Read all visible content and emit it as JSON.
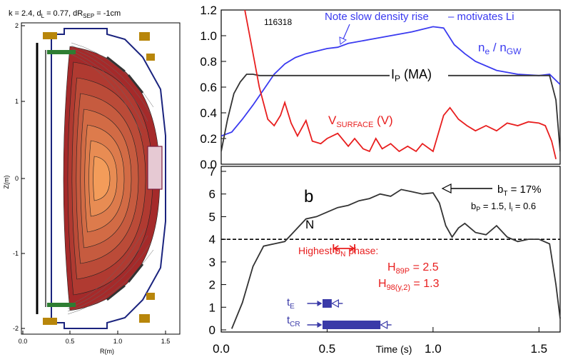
{
  "equilibrium": {
    "title_parts": {
      "k": "k = 2.4, d",
      "dL_sub": "L",
      "dL_val": " = 0.77, dR",
      "sep_sub": "SEP",
      "sep_val": " = -1cm"
    },
    "xlabel": "R(m)",
    "ylabel": "Z(m)",
    "xticks": [
      "0.0",
      "0.5",
      "1.0",
      "1.5"
    ],
    "yticks": [
      "2",
      "1",
      "0",
      "-1",
      "-2"
    ],
    "colors": {
      "vessel": "#1a237e",
      "tiles": "#2e7d32",
      "coils": "#b8860b",
      "plasma_edge": "#a52a2a",
      "plasma_core": "#f39c5a"
    }
  },
  "chart_data": [
    {
      "type": "line",
      "panel": "top",
      "shot_label": "116318",
      "xlim": [
        0.0,
        1.6
      ],
      "ylim": [
        0.0,
        1.2
      ],
      "yticks": [
        "0.0",
        "0.2",
        "0.4",
        "0.6",
        "0.8",
        "1.0",
        "1.2"
      ],
      "series": [
        {
          "name": "n_e / n_GW",
          "color": "#3a3af0",
          "x": [
            0.0,
            0.05,
            0.1,
            0.15,
            0.2,
            0.25,
            0.3,
            0.35,
            0.4,
            0.45,
            0.5,
            0.55,
            0.6,
            0.7,
            0.8,
            0.9,
            1.0,
            1.05,
            1.1,
            1.15,
            1.2,
            1.3,
            1.4,
            1.5,
            1.55,
            1.6
          ],
          "y": [
            0.22,
            0.25,
            0.35,
            0.46,
            0.58,
            0.7,
            0.78,
            0.83,
            0.86,
            0.88,
            0.9,
            0.91,
            0.94,
            0.97,
            1.0,
            1.03,
            1.07,
            1.06,
            0.93,
            0.86,
            0.8,
            0.73,
            0.7,
            0.69,
            0.7,
            0.62
          ]
        },
        {
          "name": "I_P (MA)",
          "color": "#333333",
          "x": [
            0.0,
            0.03,
            0.06,
            0.09,
            0.12,
            0.15,
            0.18,
            0.21,
            0.25,
            0.3,
            0.4,
            0.5,
            0.6,
            0.7,
            0.8,
            0.9,
            1.0,
            1.1,
            1.2,
            1.3,
            1.4,
            1.5,
            1.55,
            1.58,
            1.6
          ],
          "y": [
            0.1,
            0.35,
            0.55,
            0.64,
            0.7,
            0.7,
            0.69,
            0.69,
            0.69,
            0.69,
            0.69,
            0.69,
            0.69,
            0.69,
            0.69,
            0.69,
            0.69,
            0.69,
            0.69,
            0.69,
            0.69,
            0.69,
            0.69,
            0.5,
            0.1
          ]
        },
        {
          "name": "V_SURFACE (V)",
          "color": "#e81e1e",
          "x": [
            0.1,
            0.14,
            0.18,
            0.22,
            0.25,
            0.28,
            0.3,
            0.33,
            0.36,
            0.4,
            0.43,
            0.47,
            0.5,
            0.55,
            0.6,
            0.63,
            0.67,
            0.7,
            0.73,
            0.76,
            0.8,
            0.84,
            0.88,
            0.92,
            0.95,
            1.0,
            1.05,
            1.08,
            1.12,
            1.16,
            1.2,
            1.25,
            1.3,
            1.35,
            1.4,
            1.45,
            1.5,
            1.53,
            1.56,
            1.58
          ],
          "y": [
            1.3,
            0.95,
            0.6,
            0.35,
            0.3,
            0.38,
            0.48,
            0.32,
            0.22,
            0.34,
            0.18,
            0.16,
            0.2,
            0.24,
            0.14,
            0.2,
            0.12,
            0.1,
            0.2,
            0.12,
            0.16,
            0.1,
            0.14,
            0.1,
            0.16,
            0.1,
            0.38,
            0.44,
            0.35,
            0.3,
            0.26,
            0.3,
            0.26,
            0.32,
            0.3,
            0.33,
            0.32,
            0.3,
            0.18,
            0.04
          ]
        }
      ],
      "labels": {
        "ne": "n",
        "ne_sub": "e",
        "ngw": " / n",
        "ngw_sub": "GW",
        "ip": "I",
        "ip_sub": "P",
        "ip_unit": " (MA)",
        "vs": "V",
        "vs_sub": "SURFACE",
        "vs_unit": " (V)",
        "note": "Note slow density rise",
        "note2": "– motivates Li"
      }
    },
    {
      "type": "line",
      "panel": "bottom",
      "xlim": [
        0.0,
        1.6
      ],
      "ylim": [
        0,
        7
      ],
      "xticks": [
        "0.0",
        "0.5",
        "1.0",
        "1.5"
      ],
      "yticks": [
        "0",
        "1",
        "2",
        "3",
        "4",
        "5",
        "6",
        "7"
      ],
      "xlabel": "Time (s)",
      "reference_line": 4,
      "series": [
        {
          "name": "b_N",
          "color": "#333333",
          "x": [
            0.05,
            0.1,
            0.15,
            0.2,
            0.25,
            0.3,
            0.35,
            0.4,
            0.45,
            0.5,
            0.55,
            0.6,
            0.65,
            0.7,
            0.75,
            0.8,
            0.85,
            0.9,
            0.95,
            1.0,
            1.03,
            1.06,
            1.09,
            1.12,
            1.15,
            1.2,
            1.25,
            1.3,
            1.35,
            1.4,
            1.45,
            1.5,
            1.55,
            1.58,
            1.6
          ],
          "y": [
            0.05,
            1.2,
            2.8,
            3.7,
            3.8,
            3.9,
            4.4,
            4.9,
            5.0,
            5.2,
            5.4,
            5.5,
            5.7,
            5.8,
            6.0,
            5.9,
            6.2,
            6.1,
            6.0,
            6.05,
            5.6,
            4.6,
            4.1,
            4.5,
            4.7,
            4.3,
            4.2,
            4.6,
            4.1,
            3.9,
            4.0,
            4.0,
            3.8,
            2.0,
            0.5
          ]
        }
      ],
      "labels": {
        "bn_top": "b",
        "bn_sub": "N",
        "bt": "b",
        "bt_sub": "T",
        "bt_val": " = 17%",
        "bp": "b",
        "bp_sub": "P",
        "bp_val": " = 1.5, l",
        "li_sub": "i",
        "li_val": " = 0.6",
        "phase": "Highest  b",
        "phase_sub": "N",
        "phase_tail": " phase:",
        "h89": "H",
        "h89_sub": "89P",
        "h89_val": " = 2.5",
        "h98": "H",
        "h98_sub": "98(y,2)",
        "h98_val": " = 1.3",
        "te": "t",
        "te_sub": "E",
        "tcr": "t",
        "tcr_sub": "CR"
      },
      "phase_window": [
        0.53,
        0.63
      ],
      "timescales": {
        "tE": [
          0.48,
          0.52
        ],
        "tCR": [
          0.48,
          0.75
        ]
      }
    }
  ]
}
